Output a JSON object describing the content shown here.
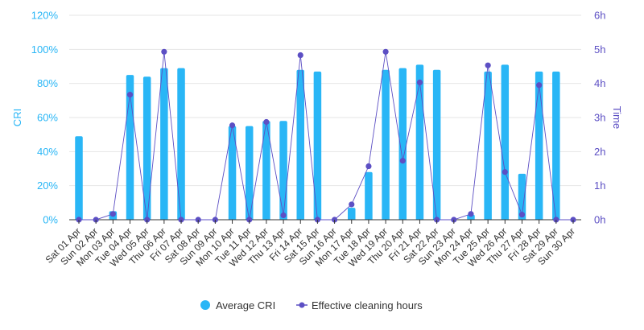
{
  "chart_data": {
    "type": "bar",
    "categories": [
      "Sat 01 Apr",
      "Sun 02 Apr",
      "Mon 03 Apr",
      "Tue 04 Apr",
      "Wed 05 Apr",
      "Thu 06 Apr",
      "Fri 07 Apr",
      "Sat 08 Apr",
      "Sun 09 Apr",
      "Mon 10 Apr",
      "Tue 11 Apr",
      "Wed 12 Apr",
      "Thu 13 Apr",
      "Fri 14 Apr",
      "Sat 15 Apr",
      "Sun 16 Apr",
      "Mon 17 Apr",
      "Tue 18 Apr",
      "Wed 19 Apr",
      "Thu 20 Apr",
      "Fri 21 Apr",
      "Sat 22 Apr",
      "Sun 23 Apr",
      "Mon 24 Apr",
      "Tue 25 Apr",
      "Wed 26 Apr",
      "Thu 27 Apr",
      "Fri 28 Apr",
      "Sat 29 Apr",
      "Sun 30 Apr"
    ],
    "series": [
      {
        "name": "Average CRI",
        "type": "bar",
        "axis": "left",
        "color": "#29b6f6",
        "unit": "%",
        "values": [
          49,
          0,
          5,
          85,
          84,
          89,
          89,
          0,
          0,
          55,
          55,
          58,
          58,
          88,
          87,
          0,
          7,
          28,
          88,
          89,
          91,
          88,
          0,
          3,
          87,
          91,
          27,
          87,
          87,
          0
        ]
      },
      {
        "name": "Effective cleaning hours",
        "type": "line",
        "axis": "right",
        "color": "#5c4fc4",
        "unit": "h",
        "values": [
          0,
          0,
          0.17,
          3.67,
          0,
          4.93,
          0,
          0,
          0,
          2.77,
          0,
          2.87,
          0.13,
          4.83,
          0,
          0,
          0.45,
          1.57,
          4.93,
          1.73,
          4.03,
          0,
          0,
          0.17,
          4.53,
          1.4,
          0.15,
          3.95,
          0,
          0
        ]
      }
    ],
    "left_axis": {
      "title": "CRI",
      "range": [
        0,
        120
      ],
      "ticks": [
        0,
        20,
        40,
        60,
        80,
        100,
        120
      ],
      "tick_labels": [
        "0%",
        "20%",
        "40%",
        "60%",
        "80%",
        "100%",
        "120%"
      ]
    },
    "right_axis": {
      "title": "Time",
      "range": [
        0,
        6
      ],
      "ticks": [
        0,
        1,
        2,
        3,
        4,
        5,
        6
      ],
      "tick_labels": [
        "0h",
        "1h",
        "2h",
        "3h",
        "4h",
        "5h",
        "6h"
      ]
    },
    "grid": true,
    "legend": {
      "position": "bottom-center",
      "items": [
        "Average CRI",
        "Effective cleaning hours"
      ]
    }
  }
}
